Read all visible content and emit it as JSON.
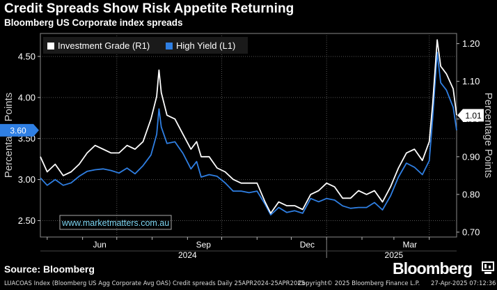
{
  "header": {
    "title": "Credit Spreads Show Risk Appetite Returning",
    "subtitle": "Bloomberg US Corporate index spreads"
  },
  "footer": {
    "source": "Source: Bloomberg",
    "brand": "Bloomberg",
    "index_note": "LUACOAS Index (Bloomberg US Agg Corporate Avg OAS) Credit spreads  Daily 25APR2024-25APR2025",
    "copyright": "Copyright© 2025 Bloomberg Finance L.P.",
    "timestamp": "27-Apr-2025 07:12:36"
  },
  "watermark": "www.marketmatters.com.au",
  "colors": {
    "background": "#000000",
    "high_yield": "#2f7fe3",
    "investment_grade": "#ffffff",
    "grid": "#555555"
  },
  "chart_data": {
    "type": "line",
    "x_range": [
      "2024-04-25",
      "2025-04-25"
    ],
    "x_ticks": [
      "Jun",
      "Sep",
      "Dec",
      "Mar"
    ],
    "x_year_labels": [
      "2024",
      "2025"
    ],
    "left_axis": {
      "label": "Percentage Points",
      "ticks": [
        "2.50",
        "3.00",
        "3.50",
        "4.00",
        "4.50"
      ],
      "range": [
        2.3,
        4.78
      ],
      "last_value_label": "3.60"
    },
    "right_axis": {
      "label": "Percentage Points",
      "ticks": [
        "0.70",
        "0.80",
        "0.90",
        "1.00",
        "1.10",
        "1.20"
      ],
      "range": [
        0.687,
        1.227
      ],
      "last_value_label": "1.01"
    },
    "legend": [
      {
        "name": "Investment Grade (R1)",
        "color": "#ffffff"
      },
      {
        "name": "High Yield (L1)",
        "color": "#2f7fe3"
      }
    ],
    "legend_position": "top-left",
    "grid": true,
    "series": [
      {
        "name": "High Yield (L1)",
        "axis": "left",
        "points": [
          [
            "2024-04-25",
            3.02
          ],
          [
            "2024-05-01",
            2.93
          ],
          [
            "2024-05-08",
            3.0
          ],
          [
            "2024-05-15",
            2.93
          ],
          [
            "2024-05-22",
            2.96
          ],
          [
            "2024-05-29",
            3.04
          ],
          [
            "2024-06-05",
            3.1
          ],
          [
            "2024-06-12",
            3.12
          ],
          [
            "2024-06-19",
            3.13
          ],
          [
            "2024-06-26",
            3.11
          ],
          [
            "2024-07-03",
            3.08
          ],
          [
            "2024-07-10",
            3.14
          ],
          [
            "2024-07-17",
            3.07
          ],
          [
            "2024-07-24",
            3.17
          ],
          [
            "2024-07-31",
            3.3
          ],
          [
            "2024-08-05",
            3.55
          ],
          [
            "2024-08-07",
            3.86
          ],
          [
            "2024-08-09",
            3.64
          ],
          [
            "2024-08-14",
            3.44
          ],
          [
            "2024-08-21",
            3.46
          ],
          [
            "2024-08-28",
            3.32
          ],
          [
            "2024-09-04",
            3.13
          ],
          [
            "2024-09-09",
            3.22
          ],
          [
            "2024-09-13",
            3.03
          ],
          [
            "2024-09-20",
            3.06
          ],
          [
            "2024-09-27",
            3.04
          ],
          [
            "2024-10-04",
            2.96
          ],
          [
            "2024-10-11",
            2.86
          ],
          [
            "2024-10-18",
            2.86
          ],
          [
            "2024-10-25",
            2.84
          ],
          [
            "2024-11-01",
            2.86
          ],
          [
            "2024-11-08",
            2.7
          ],
          [
            "2024-11-13",
            2.57
          ],
          [
            "2024-11-20",
            2.66
          ],
          [
            "2024-11-27",
            2.6
          ],
          [
            "2024-12-04",
            2.62
          ],
          [
            "2024-12-11",
            2.59
          ],
          [
            "2024-12-18",
            2.77
          ],
          [
            "2024-12-25",
            2.73
          ],
          [
            "2025-01-01",
            2.77
          ],
          [
            "2025-01-08",
            2.75
          ],
          [
            "2025-01-15",
            2.68
          ],
          [
            "2025-01-22",
            2.65
          ],
          [
            "2025-01-29",
            2.66
          ],
          [
            "2025-02-05",
            2.66
          ],
          [
            "2025-02-12",
            2.72
          ],
          [
            "2025-02-19",
            2.63
          ],
          [
            "2025-02-26",
            2.8
          ],
          [
            "2025-03-05",
            3.03
          ],
          [
            "2025-03-12",
            3.2
          ],
          [
            "2025-03-19",
            3.15
          ],
          [
            "2025-03-26",
            3.06
          ],
          [
            "2025-04-01",
            3.23
          ],
          [
            "2025-04-04",
            3.75
          ],
          [
            "2025-04-08",
            4.55
          ],
          [
            "2025-04-11",
            4.18
          ],
          [
            "2025-04-16",
            4.09
          ],
          [
            "2025-04-22",
            3.88
          ],
          [
            "2025-04-25",
            3.6
          ]
        ]
      },
      {
        "name": "Investment Grade (R1)",
        "axis": "right",
        "points": [
          [
            "2024-04-25",
            0.9
          ],
          [
            "2024-05-01",
            0.86
          ],
          [
            "2024-05-08",
            0.88
          ],
          [
            "2024-05-15",
            0.85
          ],
          [
            "2024-05-22",
            0.86
          ],
          [
            "2024-05-29",
            0.88
          ],
          [
            "2024-06-05",
            0.91
          ],
          [
            "2024-06-12",
            0.93
          ],
          [
            "2024-06-19",
            0.92
          ],
          [
            "2024-06-26",
            0.91
          ],
          [
            "2024-07-03",
            0.91
          ],
          [
            "2024-07-10",
            0.93
          ],
          [
            "2024-07-17",
            0.92
          ],
          [
            "2024-07-24",
            0.94
          ],
          [
            "2024-07-31",
            1.0
          ],
          [
            "2024-08-05",
            1.06
          ],
          [
            "2024-08-07",
            1.13
          ],
          [
            "2024-08-09",
            1.07
          ],
          [
            "2024-08-14",
            1.01
          ],
          [
            "2024-08-21",
            1.0
          ],
          [
            "2024-08-28",
            0.96
          ],
          [
            "2024-09-04",
            0.92
          ],
          [
            "2024-09-09",
            0.94
          ],
          [
            "2024-09-13",
            0.9
          ],
          [
            "2024-09-20",
            0.9
          ],
          [
            "2024-09-27",
            0.87
          ],
          [
            "2024-10-04",
            0.86
          ],
          [
            "2024-10-11",
            0.84
          ],
          [
            "2024-10-18",
            0.83
          ],
          [
            "2024-10-25",
            0.83
          ],
          [
            "2024-11-01",
            0.83
          ],
          [
            "2024-11-08",
            0.78
          ],
          [
            "2024-11-13",
            0.75
          ],
          [
            "2024-11-20",
            0.78
          ],
          [
            "2024-11-27",
            0.77
          ],
          [
            "2024-12-04",
            0.77
          ],
          [
            "2024-12-11",
            0.76
          ],
          [
            "2024-12-18",
            0.8
          ],
          [
            "2024-12-25",
            0.81
          ],
          [
            "2025-01-01",
            0.83
          ],
          [
            "2025-01-08",
            0.82
          ],
          [
            "2025-01-15",
            0.79
          ],
          [
            "2025-01-22",
            0.79
          ],
          [
            "2025-01-29",
            0.81
          ],
          [
            "2025-02-05",
            0.8
          ],
          [
            "2025-02-12",
            0.81
          ],
          [
            "2025-02-19",
            0.78
          ],
          [
            "2025-02-26",
            0.82
          ],
          [
            "2025-03-05",
            0.87
          ],
          [
            "2025-03-12",
            0.91
          ],
          [
            "2025-03-19",
            0.92
          ],
          [
            "2025-03-26",
            0.89
          ],
          [
            "2025-04-01",
            0.94
          ],
          [
            "2025-04-04",
            1.04
          ],
          [
            "2025-04-08",
            1.21
          ],
          [
            "2025-04-11",
            1.14
          ],
          [
            "2025-04-16",
            1.12
          ],
          [
            "2025-04-22",
            1.08
          ],
          [
            "2025-04-25",
            1.01
          ]
        ]
      }
    ]
  }
}
